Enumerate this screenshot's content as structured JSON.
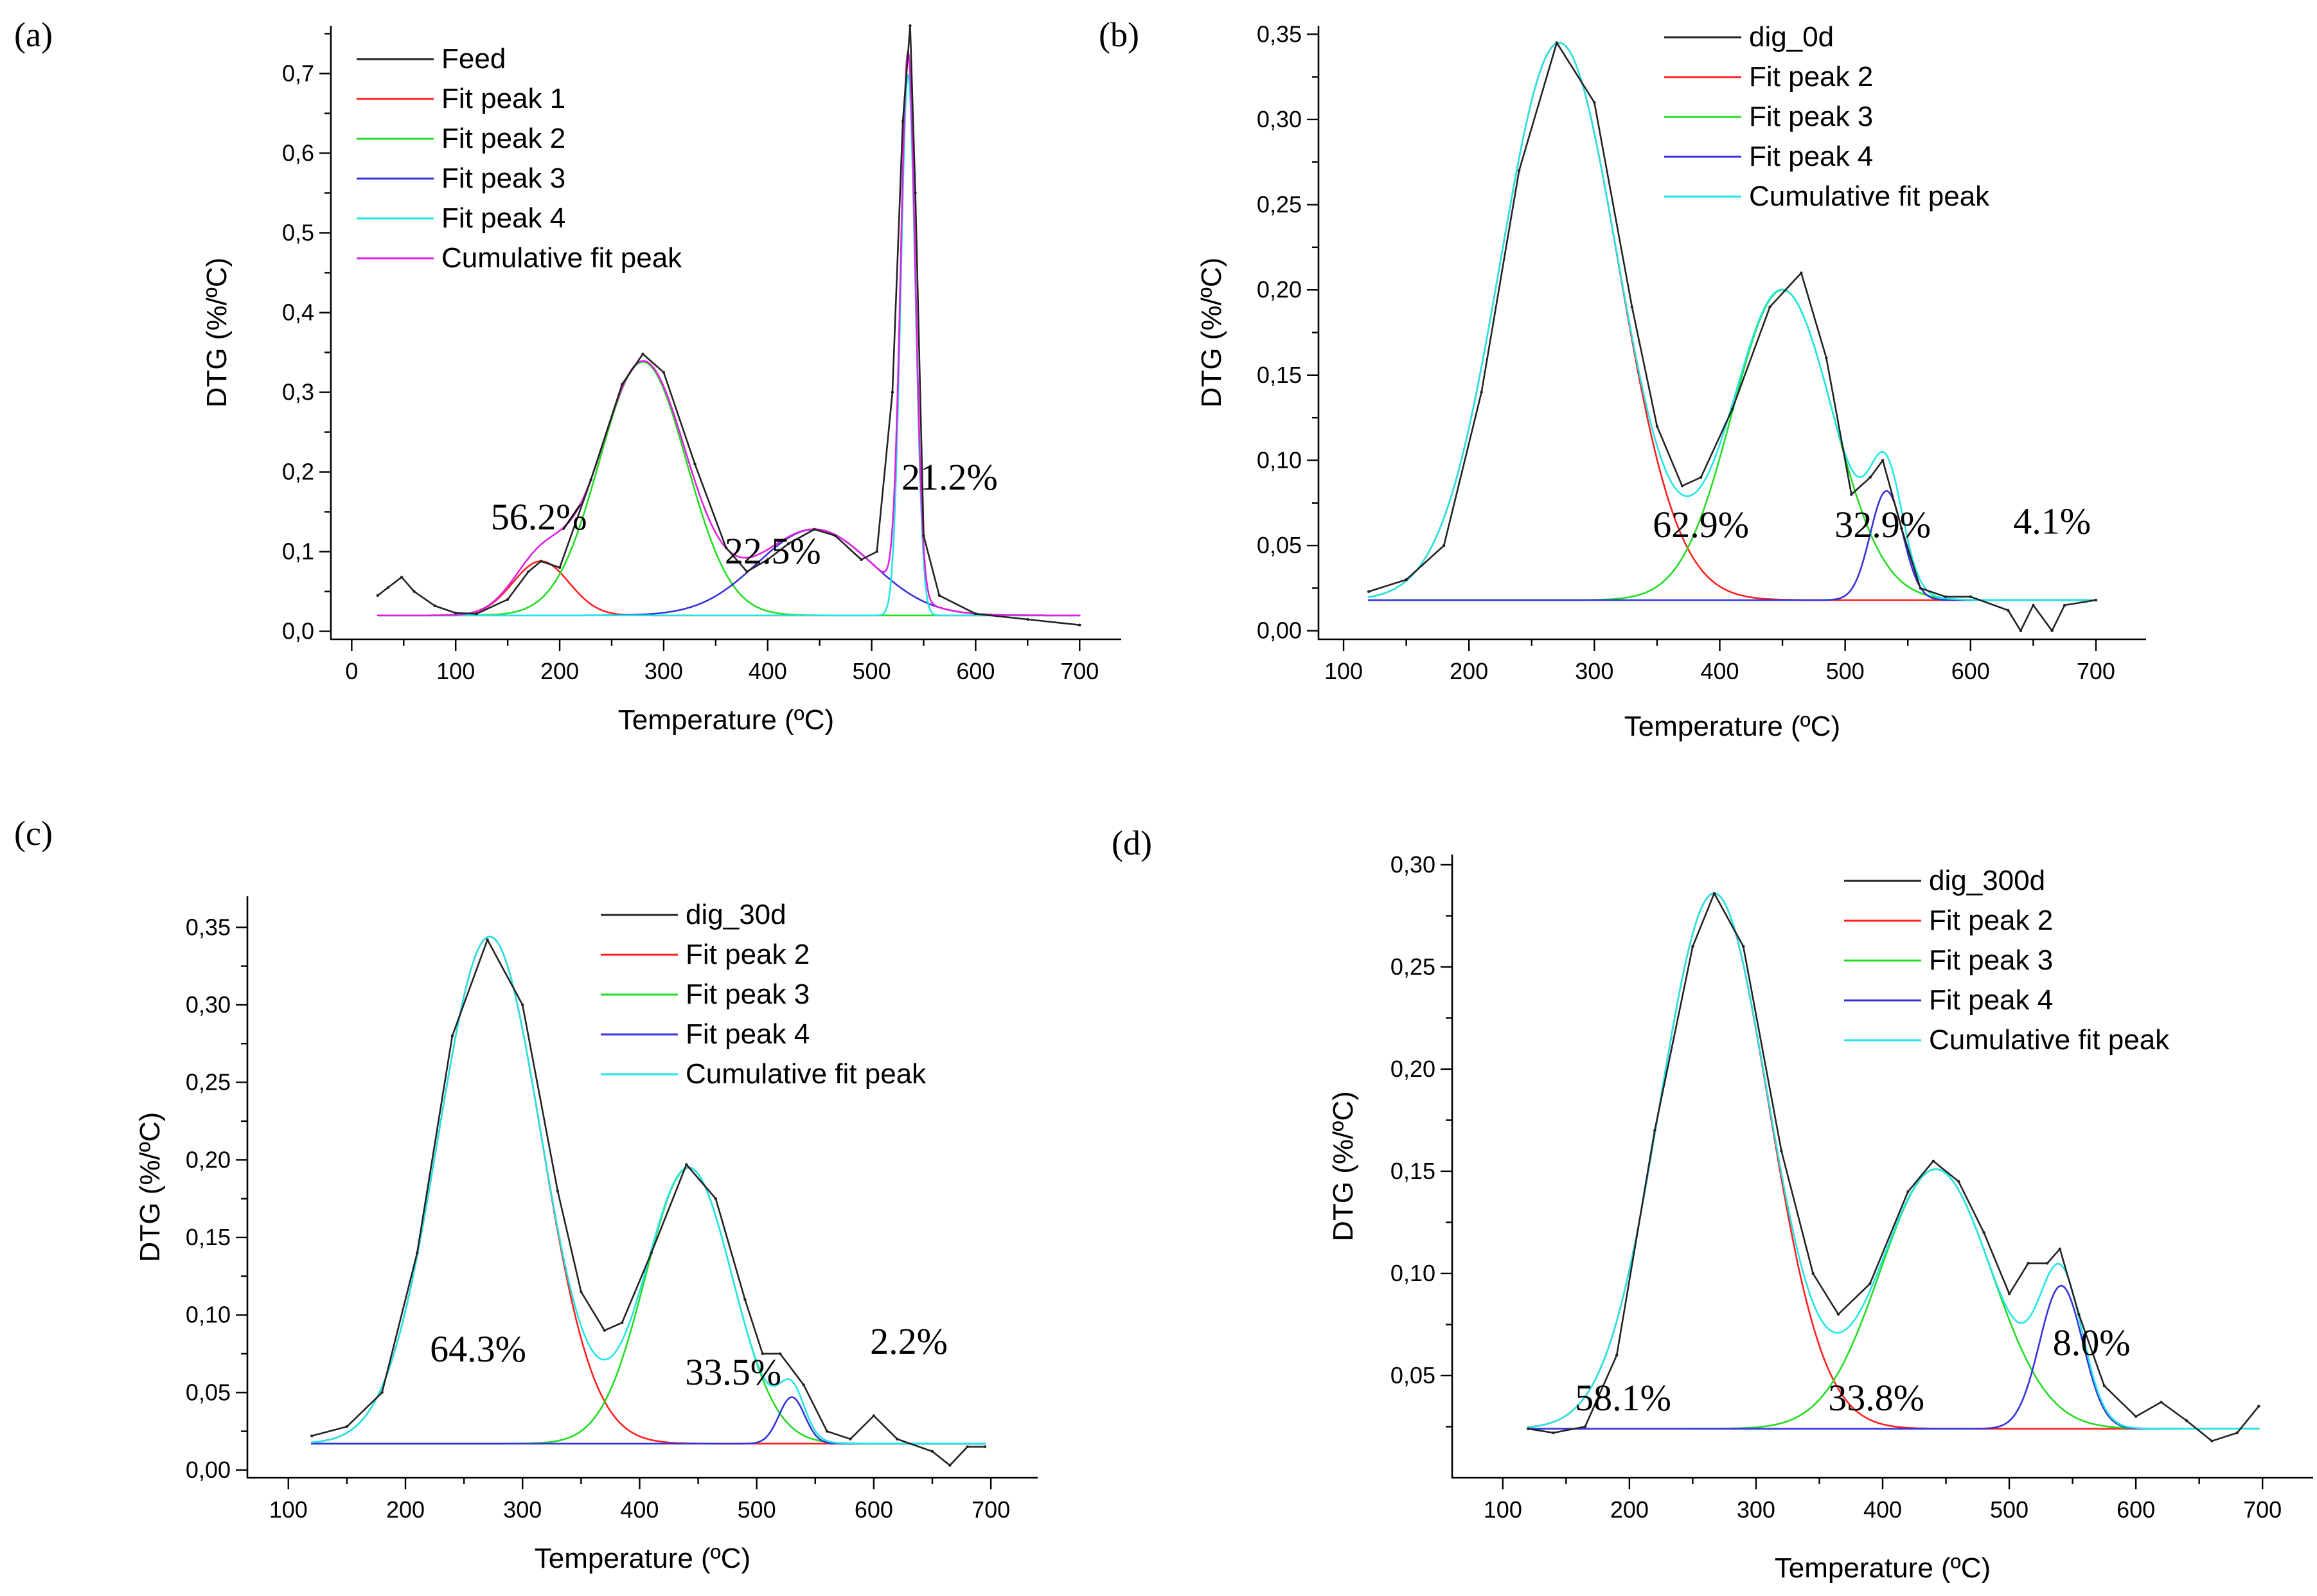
{
  "figure": {
    "panels": [
      "(a)",
      "(b)",
      "(c)",
      "(d)"
    ]
  },
  "colors": {
    "data": "#222222",
    "Fit peak 1": "#ff2020",
    "Fit peak 2": "#ff2020",
    "Fit peak 3": "#22dd22",
    "Fit peak 4": "#3333dd",
    "Fit peak 2 (a)": "#22dd22",
    "Fit peak 3 (a)": "#3333dd",
    "Fit peak 4 (a)": "#22e6e6",
    "Cumulative fit peak": "#22e6e6",
    "Cumulative fit peak (a)": "#e020e0"
  },
  "chart_data": [
    {
      "panel": "(a)",
      "type": "line",
      "xlabel": "Temperature (ºC)",
      "ylabel": "DTG (%/ºC)",
      "xlim": [
        -20,
        740
      ],
      "ylim": [
        -0.01,
        0.76
      ],
      "xticks": [
        0,
        100,
        200,
        300,
        400,
        500,
        600,
        700
      ],
      "yticks": [
        "0,0",
        "0,1",
        "0,2",
        "0,3",
        "0,4",
        "0,5",
        "0,6",
        "0,7"
      ],
      "legend": [
        "Feed",
        "Fit peak 1",
        "Fit peak 2",
        "Fit peak 3",
        "Fit peak 4",
        "Cumulative fit peak"
      ],
      "baseline": 0.02,
      "peaks": [
        {
          "name": "Fit peak 1",
          "center": 182,
          "height": 0.068,
          "sigma": 27
        },
        {
          "name": "Fit peak 2",
          "center": 280,
          "height": 0.318,
          "sigma": 42
        },
        {
          "name": "Fit peak 3",
          "center": 445,
          "height": 0.108,
          "sigma": 55
        },
        {
          "name": "Fit peak 4",
          "center": 535,
          "height": 0.68,
          "sigma": 7
        }
      ],
      "data_points": [
        [
          25,
          0.045
        ],
        [
          35,
          0.055
        ],
        [
          48,
          0.068
        ],
        [
          60,
          0.05
        ],
        [
          80,
          0.032
        ],
        [
          100,
          0.023
        ],
        [
          120,
          0.022
        ],
        [
          150,
          0.04
        ],
        [
          170,
          0.075
        ],
        [
          182,
          0.088
        ],
        [
          200,
          0.08
        ],
        [
          230,
          0.19
        ],
        [
          260,
          0.31
        ],
        [
          280,
          0.348
        ],
        [
          300,
          0.325
        ],
        [
          330,
          0.21
        ],
        [
          360,
          0.105
        ],
        [
          380,
          0.075
        ],
        [
          400,
          0.09
        ],
        [
          420,
          0.11
        ],
        [
          445,
          0.128
        ],
        [
          465,
          0.12
        ],
        [
          490,
          0.09
        ],
        [
          505,
          0.1
        ],
        [
          520,
          0.3
        ],
        [
          530,
          0.64
        ],
        [
          537,
          0.76
        ],
        [
          542,
          0.55
        ],
        [
          550,
          0.12
        ],
        [
          565,
          0.045
        ],
        [
          600,
          0.022
        ],
        [
          650,
          0.015
        ],
        [
          700,
          0.008
        ]
      ],
      "annotations": [
        {
          "text": "56.2%",
          "x": 180,
          "y": 0.128
        },
        {
          "text": "22.5%",
          "x": 405,
          "y": 0.085
        },
        {
          "text": "21.2%",
          "x": 575,
          "y": 0.178
        }
      ]
    },
    {
      "panel": "(b)",
      "type": "line",
      "xlabel": "Temperature (ºC)",
      "ylabel": "DTG (%/ºC)",
      "xlim": [
        80,
        740
      ],
      "ylim": [
        -0.005,
        0.355
      ],
      "xticks": [
        100,
        200,
        300,
        400,
        500,
        600,
        700
      ],
      "yticks": [
        "0,00",
        "0,05",
        "0,10",
        "0,15",
        "0,20",
        "0,25",
        "0,30",
        "0,35"
      ],
      "legend": [
        "dig_0d",
        "Fit peak 2",
        "Fit peak 3",
        "Fit peak 4",
        "Cumulative fit peak"
      ],
      "baseline": 0.018,
      "peaks": [
        {
          "name": "Fit peak 2",
          "center": 272,
          "height": 0.327,
          "sigma": 47
        },
        {
          "name": "Fit peak 3",
          "center": 450,
          "height": 0.182,
          "sigma": 40
        },
        {
          "name": "Fit peak 4",
          "center": 533,
          "height": 0.064,
          "sigma": 13
        }
      ],
      "data_points": [
        [
          120,
          0.023
        ],
        [
          150,
          0.03
        ],
        [
          180,
          0.05
        ],
        [
          210,
          0.14
        ],
        [
          240,
          0.27
        ],
        [
          270,
          0.345
        ],
        [
          300,
          0.31
        ],
        [
          330,
          0.19
        ],
        [
          350,
          0.12
        ],
        [
          370,
          0.085
        ],
        [
          385,
          0.09
        ],
        [
          410,
          0.13
        ],
        [
          440,
          0.19
        ],
        [
          465,
          0.21
        ],
        [
          485,
          0.16
        ],
        [
          505,
          0.08
        ],
        [
          520,
          0.09
        ],
        [
          530,
          0.1
        ],
        [
          545,
          0.06
        ],
        [
          560,
          0.025
        ],
        [
          580,
          0.02
        ],
        [
          600,
          0.02
        ],
        [
          630,
          0.012
        ],
        [
          640,
          0.0
        ],
        [
          650,
          0.015
        ],
        [
          665,
          0.0
        ],
        [
          675,
          0.015
        ],
        [
          700,
          0.018
        ]
      ],
      "annotations": [
        {
          "text": "62.9%",
          "x": 385,
          "y": 0.055
        },
        {
          "text": "32.9%",
          "x": 530,
          "y": 0.055
        },
        {
          "text": "4.1%",
          "x": 665,
          "y": 0.057
        }
      ]
    },
    {
      "panel": "(c)",
      "type": "line",
      "xlabel": "Temperature (ºC)",
      "ylabel": "DTG (%/ºC)",
      "xlim": [
        65,
        740
      ],
      "ylim": [
        -0.005,
        0.37
      ],
      "xticks": [
        100,
        200,
        300,
        400,
        500,
        600,
        700
      ],
      "yticks": [
        "0,00",
        "0,05",
        "0,10",
        "0,15",
        "0,20",
        "0,25",
        "0,30",
        "0,35"
      ],
      "legend": [
        "dig_30d",
        "Fit peak 2",
        "Fit peak 3",
        "Fit peak 4",
        "Cumulative fit peak"
      ],
      "baseline": 0.017,
      "peaks": [
        {
          "name": "Fit peak 2",
          "center": 272,
          "height": 0.327,
          "sigma": 44
        },
        {
          "name": "Fit peak 3",
          "center": 442,
          "height": 0.178,
          "sigma": 37
        },
        {
          "name": "Fit peak 4",
          "center": 530,
          "height": 0.03,
          "sigma": 11
        }
      ],
      "data_points": [
        [
          120,
          0.022
        ],
        [
          150,
          0.028
        ],
        [
          180,
          0.05
        ],
        [
          210,
          0.14
        ],
        [
          240,
          0.28
        ],
        [
          270,
          0.342
        ],
        [
          300,
          0.3
        ],
        [
          330,
          0.18
        ],
        [
          350,
          0.115
        ],
        [
          370,
          0.09
        ],
        [
          385,
          0.095
        ],
        [
          410,
          0.14
        ],
        [
          440,
          0.197
        ],
        [
          465,
          0.175
        ],
        [
          490,
          0.11
        ],
        [
          505,
          0.075
        ],
        [
          520,
          0.075
        ],
        [
          540,
          0.055
        ],
        [
          560,
          0.025
        ],
        [
          580,
          0.02
        ],
        [
          600,
          0.035
        ],
        [
          620,
          0.02
        ],
        [
          650,
          0.012
        ],
        [
          665,
          0.003
        ],
        [
          680,
          0.015
        ],
        [
          695,
          0.015
        ]
      ],
      "annotations": [
        {
          "text": "64.3%",
          "x": 262,
          "y": 0.07
        },
        {
          "text": "33.5%",
          "x": 480,
          "y": 0.055
        },
        {
          "text": "2.2%",
          "x": 630,
          "y": 0.075
        }
      ]
    },
    {
      "panel": "(d)",
      "type": "line",
      "xlabel": "Temperature (ºC)",
      "ylabel": "DTG (%/ºC)",
      "xlim": [
        60,
        740
      ],
      "ylim": [
        0.0,
        0.305
      ],
      "xticks": [
        100,
        200,
        300,
        400,
        500,
        600,
        700
      ],
      "yticks": [
        "0,05",
        "0,10",
        "0,15",
        "0,20",
        "0,25",
        "0,30"
      ],
      "legend": [
        "dig_300d",
        "Fit peak 2",
        "Fit peak 3",
        "Fit peak 4",
        "Cumulative fit peak"
      ],
      "baseline": 0.024,
      "peaks": [
        {
          "name": "Fit peak 2",
          "center": 267,
          "height": 0.262,
          "sigma": 43
        },
        {
          "name": "Fit peak 3",
          "center": 442,
          "height": 0.127,
          "sigma": 44
        },
        {
          "name": "Fit peak 4",
          "center": 541,
          "height": 0.07,
          "sigma": 17
        }
      ],
      "data_points": [
        [
          120,
          0.024
        ],
        [
          140,
          0.022
        ],
        [
          165,
          0.025
        ],
        [
          190,
          0.06
        ],
        [
          220,
          0.17
        ],
        [
          250,
          0.26
        ],
        [
          267,
          0.286
        ],
        [
          290,
          0.26
        ],
        [
          320,
          0.16
        ],
        [
          345,
          0.1
        ],
        [
          365,
          0.08
        ],
        [
          390,
          0.095
        ],
        [
          420,
          0.14
        ],
        [
          440,
          0.155
        ],
        [
          460,
          0.145
        ],
        [
          480,
          0.12
        ],
        [
          500,
          0.09
        ],
        [
          515,
          0.105
        ],
        [
          530,
          0.105
        ],
        [
          540,
          0.112
        ],
        [
          555,
          0.08
        ],
        [
          575,
          0.045
        ],
        [
          600,
          0.03
        ],
        [
          620,
          0.037
        ],
        [
          640,
          0.028
        ],
        [
          660,
          0.018
        ],
        [
          680,
          0.022
        ],
        [
          697,
          0.035
        ]
      ],
      "annotations": [
        {
          "text": "58.1%",
          "x": 195,
          "y": 0.033
        },
        {
          "text": "33.8%",
          "x": 395,
          "y": 0.033
        },
        {
          "text": "8.0%",
          "x": 565,
          "y": 0.06
        }
      ]
    }
  ]
}
